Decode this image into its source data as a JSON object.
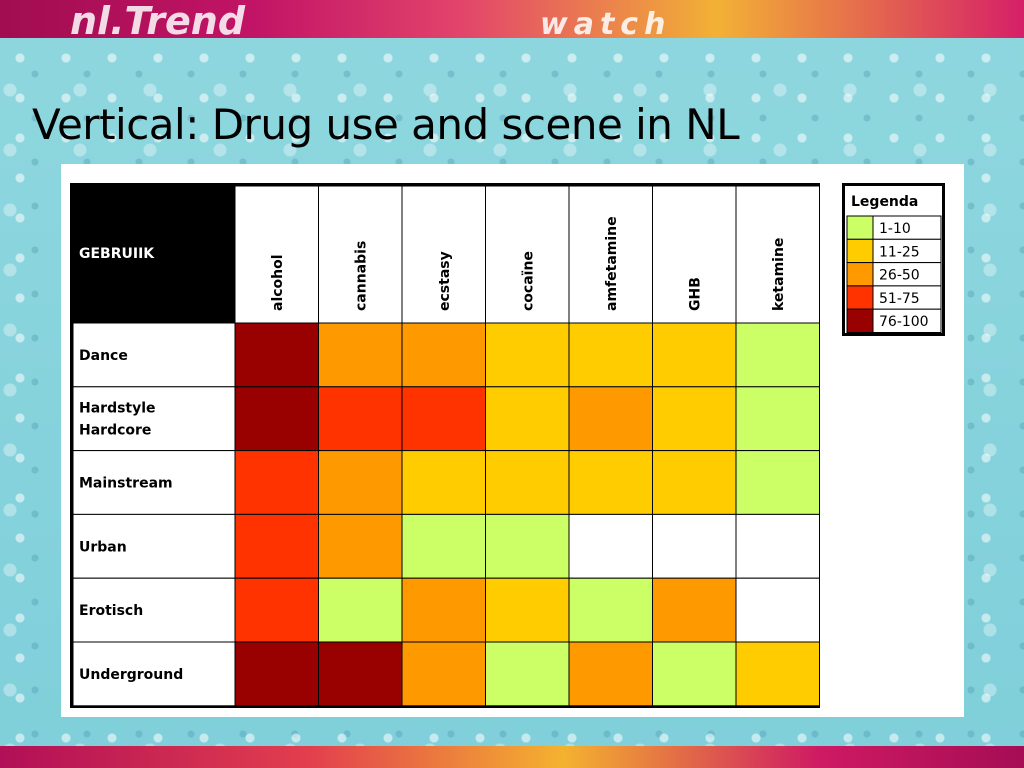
{
  "banner": {
    "top_text": "nl.Trend",
    "top_text_2": "watch"
  },
  "slide": {
    "title": "Vertical: Drug use and scene in NL"
  },
  "colors": {
    "1-10": "#ccff66",
    "11-25": "#ffcc00",
    "26-50": "#ff9900",
    "51-75": "#ff3300",
    "76-100": "#990000",
    "none": "#ffffff"
  },
  "chart_data": {
    "type": "heatmap",
    "corner_label": "GEBRUIIK",
    "columns": [
      "alcohol",
      "cannabis",
      "ecstasy",
      "cocaïne",
      "amfetamine",
      "GHB",
      "ketamine"
    ],
    "rows": [
      {
        "label": [
          "Dance"
        ],
        "values": [
          "76-100",
          "26-50",
          "26-50",
          "11-25",
          "11-25",
          "11-25",
          "1-10"
        ]
      },
      {
        "label": [
          "Hardstyle",
          "Hardcore"
        ],
        "values": [
          "76-100",
          "51-75",
          "51-75",
          "11-25",
          "26-50",
          "11-25",
          "1-10"
        ]
      },
      {
        "label": [
          "Mainstream"
        ],
        "values": [
          "51-75",
          "26-50",
          "11-25",
          "11-25",
          "11-25",
          "11-25",
          "1-10"
        ]
      },
      {
        "label": [
          "Urban"
        ],
        "values": [
          "51-75",
          "26-50",
          "1-10",
          "1-10",
          "none",
          "none",
          "none"
        ]
      },
      {
        "label": [
          "Erotisch"
        ],
        "values": [
          "51-75",
          "1-10",
          "26-50",
          "11-25",
          "1-10",
          "26-50",
          "none"
        ]
      },
      {
        "label": [
          "Underground"
        ],
        "values": [
          "76-100",
          "76-100",
          "26-50",
          "1-10",
          "26-50",
          "1-10",
          "11-25"
        ]
      }
    ],
    "legend": {
      "title": "Legenda",
      "items": [
        "1-10",
        "11-25",
        "26-50",
        "51-75",
        "76-100"
      ]
    }
  }
}
